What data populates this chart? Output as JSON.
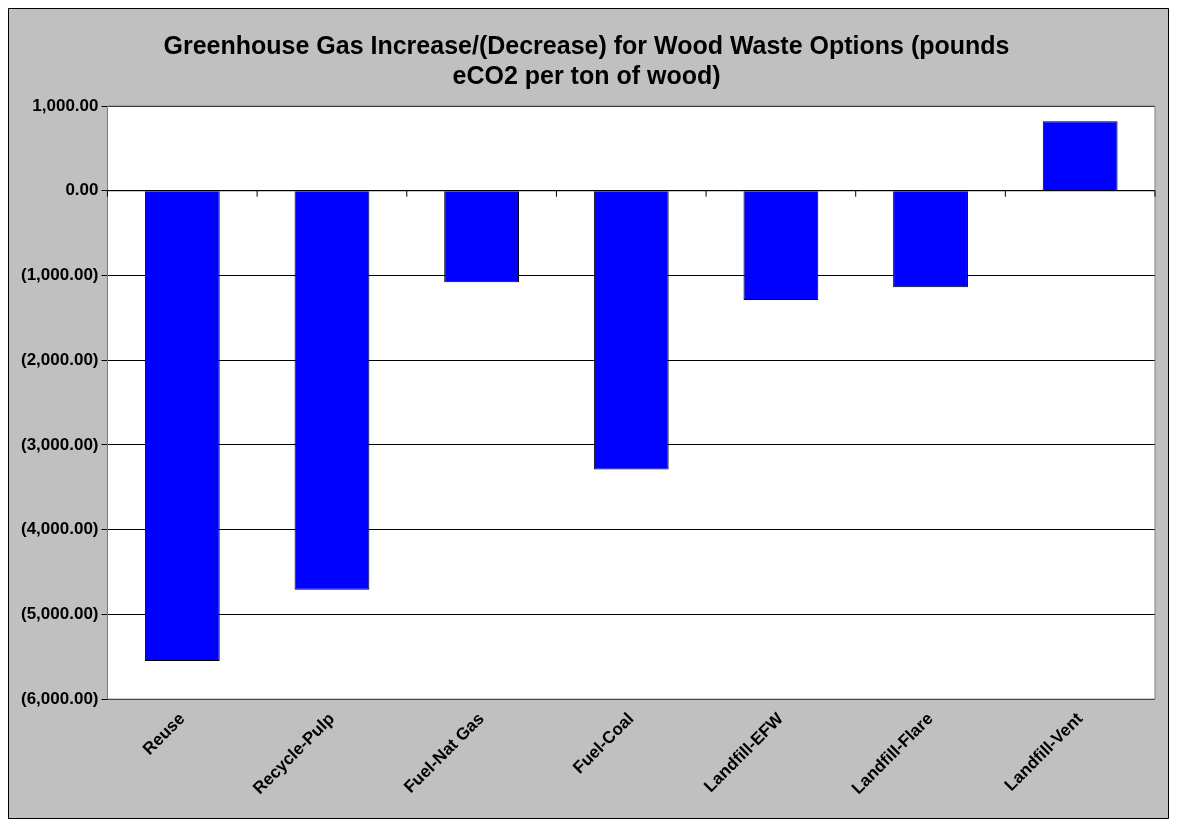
{
  "chart_data": {
    "type": "bar",
    "title": "Greenhouse Gas Increase/(Decrease) for Wood Waste Options (pounds eCO2 per ton of wood)",
    "categories": [
      "Reuse",
      "Recycle-Pulp",
      "Fuel-Nat Gas",
      "Fuel-Coal",
      "Landfill-EFW",
      "Landfill-Flare",
      "Landfill-Vent"
    ],
    "values": [
      -5550,
      -4710,
      -1080,
      -3290,
      -1290,
      -1140,
      820
    ],
    "color": "#0000ff",
    "ylim": [
      -6000,
      1000
    ],
    "yticks": [
      {
        "value": -6000,
        "label": "(6,000.00)"
      },
      {
        "value": -5000,
        "label": "(5,000.00)"
      },
      {
        "value": -4000,
        "label": "(4,000.00)"
      },
      {
        "value": -3000,
        "label": "(3,000.00)"
      },
      {
        "value": -2000,
        "label": "(2,000.00)"
      },
      {
        "value": -1000,
        "label": "(1,000.00)"
      },
      {
        "value": 0,
        "label": "0.00"
      },
      {
        "value": 1000,
        "label": "1,000.00"
      }
    ],
    "grid": "y",
    "legend": false
  }
}
